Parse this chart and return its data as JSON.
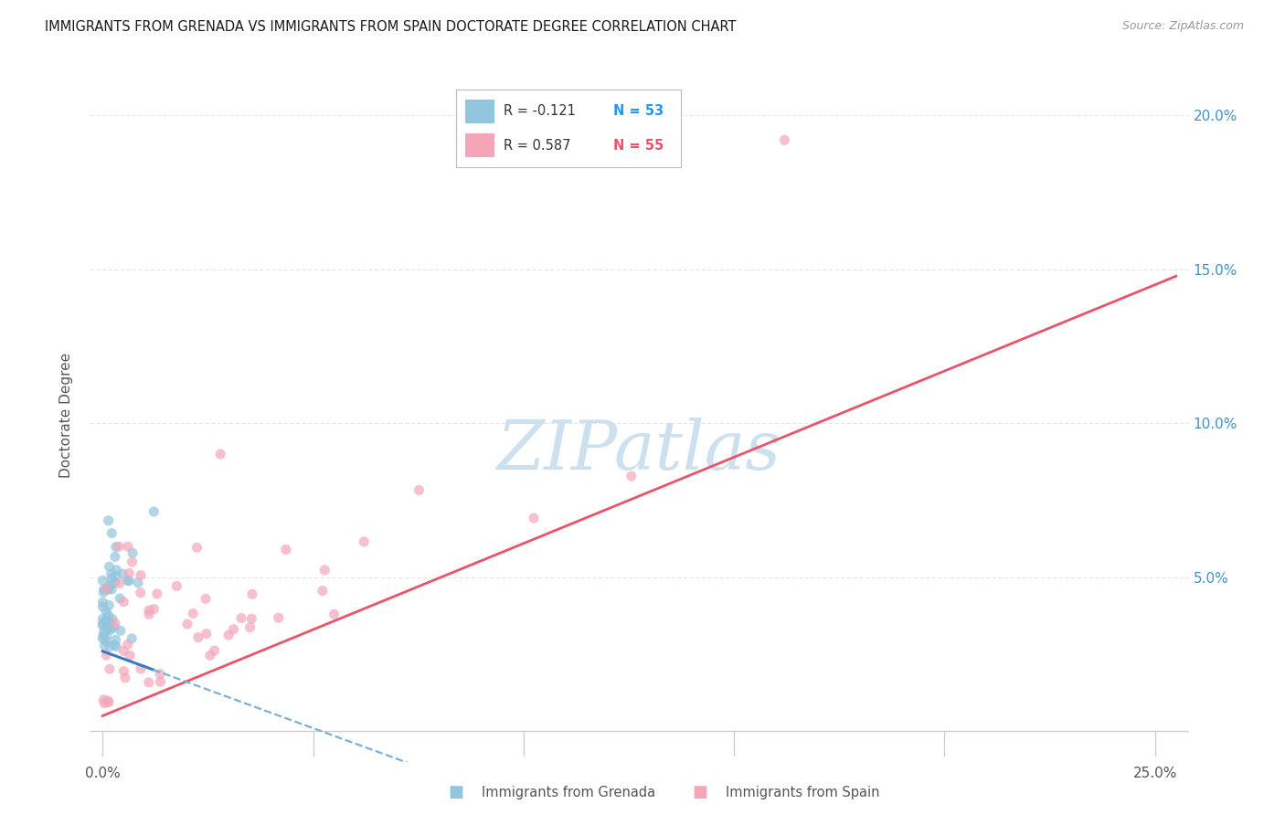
{
  "title": "IMMIGRANTS FROM GRENADA VS IMMIGRANTS FROM SPAIN DOCTORATE DEGREE CORRELATION CHART",
  "source": "Source: ZipAtlas.com",
  "xlabel_grenada": "Immigrants from Grenada",
  "xlabel_spain": "Immigrants from Spain",
  "ylabel": "Doctorate Degree",
  "watermark": "ZIPatlas",
  "legend_grenada_R": "R = -0.121",
  "legend_grenada_N": "N = 53",
  "legend_spain_R": "R = 0.587",
  "legend_spain_N": "N = 55",
  "color_grenada": "#92c5de",
  "color_spain": "#f4a6b8",
  "line_color_grenada_solid": "#3a7abf",
  "line_color_grenada_dash": "#7ab0d8",
  "line_color_spain": "#e8546a",
  "right_axis_color": "#4292c6",
  "N_color_grenada": "#2196F3",
  "N_color_spain": "#e8546a",
  "watermark_color": "#cce0ef",
  "title_color": "#1a1a1a",
  "source_color": "#999999",
  "grid_color": "#e8e8e8",
  "background_color": "#ffffff",
  "xlim": [
    -0.003,
    0.258
  ],
  "ylim": [
    -0.01,
    0.215
  ],
  "ytick_positions": [
    0.0,
    0.05,
    0.1,
    0.15,
    0.2
  ],
  "ytick_labels_right": [
    "",
    "5.0%",
    "10.0%",
    "15.0%",
    "20.0%"
  ],
  "xtick_positions": [
    0.0,
    0.05,
    0.1,
    0.15,
    0.2,
    0.25
  ],
  "xtick_labels": [
    "0.0%",
    "",
    "",
    "",
    "",
    "25.0%"
  ]
}
